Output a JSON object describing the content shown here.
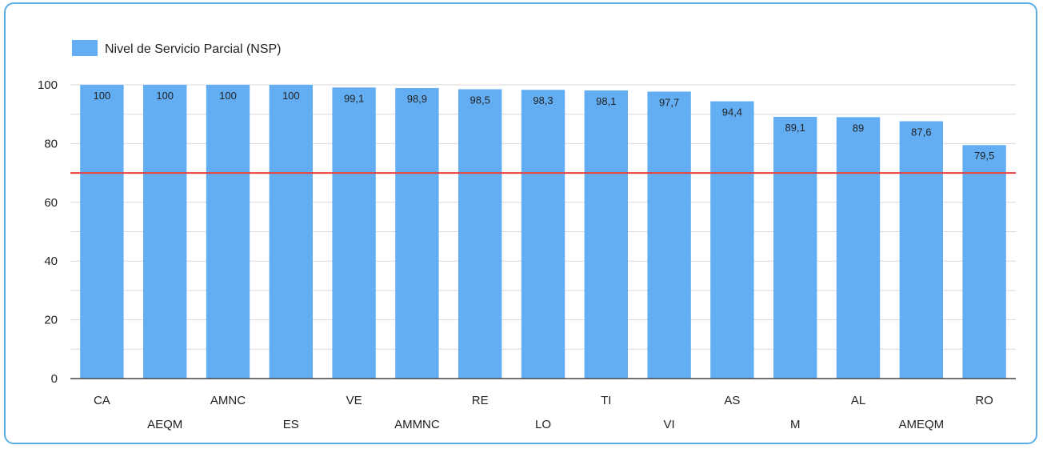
{
  "chart_data": {
    "type": "bar",
    "categories": [
      "CA",
      "AEQM",
      "AMNC",
      "ES",
      "VE",
      "AMMNC",
      "RE",
      "LO",
      "TI",
      "VI",
      "AS",
      "M",
      "AL",
      "AMEQM",
      "RO"
    ],
    "series": [
      {
        "name": "Nivel de Servicio Parcial (NSP)",
        "values": [
          100,
          100,
          100,
          100,
          99.1,
          98.9,
          98.5,
          98.3,
          98.1,
          97.7,
          94.4,
          89.1,
          89,
          87.6,
          79.5
        ],
        "labels": [
          "100",
          "100",
          "100",
          "100",
          "99,1",
          "98,9",
          "98,5",
          "98,3",
          "98,1",
          "97,7",
          "94,4",
          "89,1",
          "89",
          "87,6",
          "79,5"
        ]
      }
    ],
    "ylim": [
      0,
      100
    ],
    "yticks": [
      0,
      20,
      40,
      60,
      80,
      100
    ],
    "reference_line": 70,
    "legend_position": "top-left",
    "grid": true,
    "xlabel": "",
    "ylabel": "",
    "title": ""
  },
  "colors": {
    "bar": "#63aef3",
    "reference_line": "#e8413c",
    "grid": "#d9d9d9",
    "axis": "#444444",
    "border": "#5aaee6"
  }
}
